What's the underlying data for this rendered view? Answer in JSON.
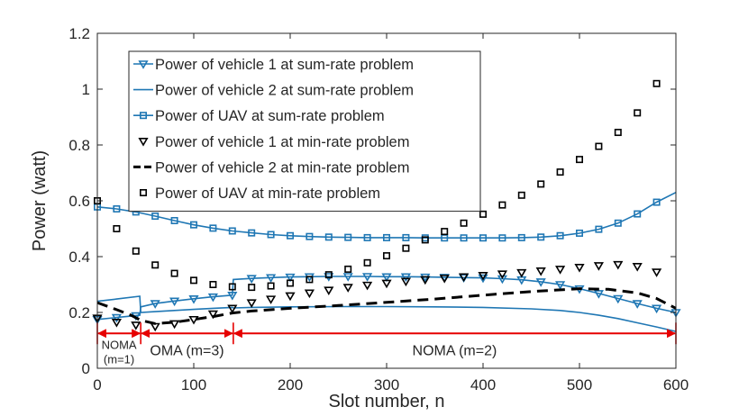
{
  "chart_data": {
    "type": "line",
    "xlabel": "Slot number, n",
    "ylabel": "Power (watt)",
    "xlim": [
      0,
      600
    ],
    "ylim": [
      0,
      1.2
    ],
    "xticks": [
      0,
      100,
      200,
      300,
      400,
      500,
      600
    ],
    "yticks": [
      0,
      0.2,
      0.4,
      0.6,
      0.8,
      1,
      1.2
    ],
    "ytick_labels": [
      "0",
      "0.2",
      "0.4",
      "0.6",
      "0.8",
      "1",
      "1.2"
    ],
    "grid": false,
    "legend_position": "top-left",
    "series": [
      {
        "name": "Power of vehicle 1 at sum-rate problem",
        "style": "line-triangle",
        "color": "#1f77b4",
        "x": [
          0,
          20,
          44,
          45,
          60,
          80,
          100,
          120,
          140,
          141,
          160,
          180,
          200,
          220,
          240,
          260,
          280,
          300,
          320,
          340,
          360,
          380,
          400,
          420,
          440,
          460,
          480,
          500,
          520,
          540,
          560,
          580,
          600
        ],
        "y": [
          0.175,
          0.182,
          0.19,
          0.22,
          0.232,
          0.241,
          0.249,
          0.256,
          0.262,
          0.318,
          0.322,
          0.325,
          0.327,
          0.328,
          0.329,
          0.329,
          0.329,
          0.328,
          0.328,
          0.327,
          0.326,
          0.325,
          0.324,
          0.321,
          0.317,
          0.31,
          0.3,
          0.285,
          0.268,
          0.25,
          0.232,
          0.215,
          0.2
        ],
        "marker_x": [
          0,
          20,
          40,
          60,
          80,
          100,
          120,
          140,
          160,
          180,
          200,
          220,
          240,
          260,
          280,
          300,
          320,
          340,
          360,
          380,
          400,
          420,
          440,
          460,
          480,
          500,
          520,
          540,
          560,
          580,
          600
        ]
      },
      {
        "name": "Power of vehicle 2 at sum-rate problem",
        "style": "line",
        "color": "#1f77b4",
        "x": [
          0,
          20,
          44,
          45,
          60,
          80,
          100,
          120,
          140,
          141,
          160,
          200,
          250,
          300,
          350,
          400,
          450,
          480,
          500,
          520,
          540,
          560,
          580,
          600
        ],
        "y": [
          0.24,
          0.248,
          0.258,
          0.2,
          0.203,
          0.207,
          0.211,
          0.215,
          0.218,
          0.216,
          0.218,
          0.22,
          0.221,
          0.221,
          0.22,
          0.218,
          0.213,
          0.207,
          0.2,
          0.19,
          0.178,
          0.163,
          0.148,
          0.132
        ]
      },
      {
        "name": "Power of UAV at sum-rate problem",
        "style": "line-square",
        "color": "#1f77b4",
        "x": [
          0,
          20,
          40,
          60,
          80,
          100,
          120,
          140,
          160,
          180,
          200,
          220,
          240,
          260,
          280,
          300,
          320,
          340,
          360,
          380,
          400,
          420,
          440,
          460,
          480,
          500,
          520,
          540,
          560,
          580,
          600
        ],
        "y": [
          0.578,
          0.571,
          0.56,
          0.545,
          0.529,
          0.514,
          0.502,
          0.492,
          0.485,
          0.479,
          0.475,
          0.472,
          0.47,
          0.469,
          0.468,
          0.468,
          0.468,
          0.467,
          0.467,
          0.467,
          0.467,
          0.467,
          0.468,
          0.47,
          0.475,
          0.484,
          0.498,
          0.52,
          0.553,
          0.595,
          0.63
        ],
        "marker_x": [
          0,
          20,
          40,
          60,
          80,
          100,
          120,
          140,
          160,
          180,
          200,
          220,
          240,
          260,
          280,
          300,
          320,
          340,
          360,
          380,
          400,
          420,
          440,
          460,
          480,
          500,
          520,
          540,
          560,
          580
        ]
      },
      {
        "name": "Power of vehicle 1 at min-rate problem",
        "style": "triangle",
        "color": "#000000",
        "x": [
          0,
          20,
          40,
          60,
          80,
          100,
          120,
          140,
          160,
          180,
          200,
          220,
          240,
          260,
          280,
          300,
          320,
          340,
          360,
          380,
          400,
          420,
          440,
          460,
          480,
          500,
          520,
          540,
          560,
          580
        ],
        "y": [
          0.18,
          0.165,
          0.155,
          0.15,
          0.16,
          0.175,
          0.195,
          0.215,
          0.235,
          0.248,
          0.26,
          0.27,
          0.28,
          0.29,
          0.298,
          0.305,
          0.312,
          0.318,
          0.323,
          0.328,
          0.333,
          0.338,
          0.343,
          0.349,
          0.355,
          0.362,
          0.368,
          0.372,
          0.365,
          0.345
        ]
      },
      {
        "name": "Power of vehicle 2 at min-rate problem",
        "style": "dashed",
        "color": "#000000",
        "x": [
          0,
          20,
          35,
          45,
          60,
          80,
          100,
          120,
          140,
          160,
          200,
          250,
          300,
          350,
          400,
          450,
          500,
          530,
          560,
          580,
          600
        ],
        "y": [
          0.235,
          0.21,
          0.19,
          0.172,
          0.16,
          0.165,
          0.175,
          0.185,
          0.198,
          0.205,
          0.215,
          0.225,
          0.236,
          0.248,
          0.262,
          0.275,
          0.285,
          0.283,
          0.27,
          0.25,
          0.215
        ]
      },
      {
        "name": "Power of UAV at min-rate problem",
        "style": "square",
        "color": "#000000",
        "x": [
          0,
          20,
          40,
          60,
          80,
          100,
          120,
          140,
          160,
          180,
          200,
          220,
          240,
          260,
          280,
          300,
          320,
          340,
          360,
          380,
          400,
          420,
          440,
          460,
          480,
          500,
          520,
          540,
          560,
          580
        ],
        "y": [
          0.6,
          0.5,
          0.42,
          0.37,
          0.34,
          0.315,
          0.3,
          0.292,
          0.29,
          0.295,
          0.305,
          0.318,
          0.335,
          0.355,
          0.378,
          0.403,
          0.43,
          0.46,
          0.49,
          0.52,
          0.552,
          0.585,
          0.62,
          0.66,
          0.703,
          0.748,
          0.795,
          0.845,
          0.915,
          1.02
        ]
      }
    ],
    "annotations": [
      {
        "text": "NOMA",
        "text2": "(m=1)",
        "x_start": 0,
        "x_end": 45,
        "y": 0.125
      },
      {
        "text": "OMA (m=3)",
        "x_start": 45,
        "x_end": 141,
        "y": 0.125
      },
      {
        "text": "NOMA (m=2)",
        "x_start": 141,
        "x_end": 600,
        "y": 0.125
      }
    ],
    "annotation_color": "#e60000"
  }
}
